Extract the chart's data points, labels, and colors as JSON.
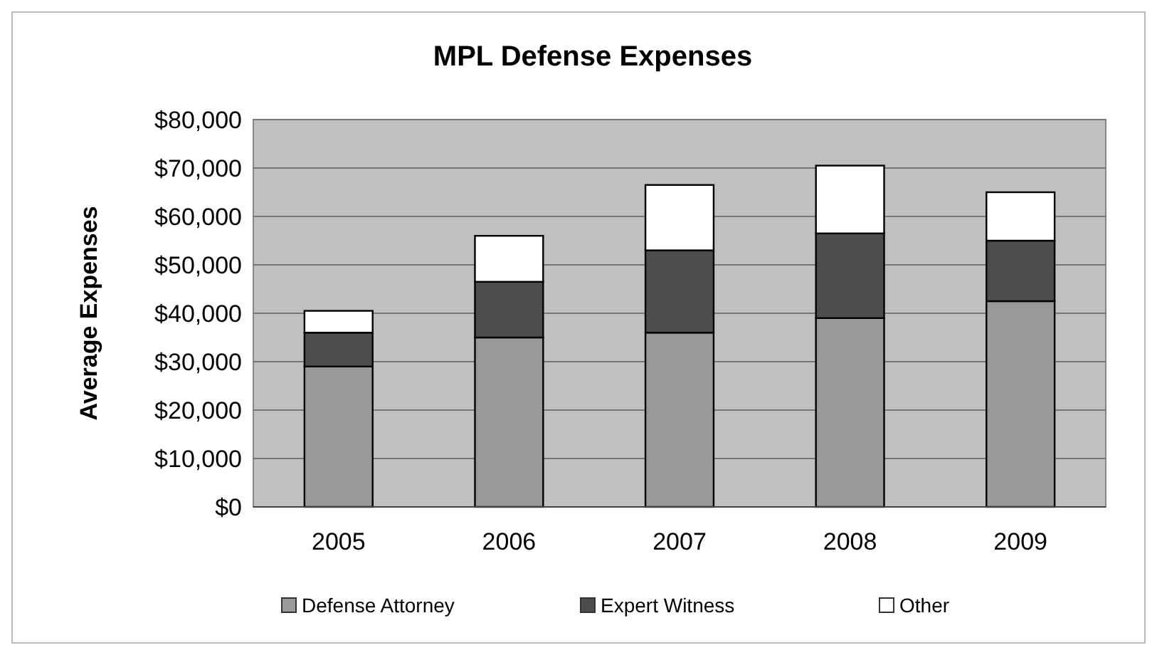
{
  "chart_data": {
    "type": "bar",
    "title": "MPL Defense Expenses",
    "ylabel": "Average Expenses",
    "categories": [
      "2005",
      "2006",
      "2007",
      "2008",
      "2009"
    ],
    "stacked": true,
    "series": [
      {
        "name": "Defense Attorney",
        "color": "#999999",
        "values": [
          29000,
          35000,
          36000,
          39000,
          42500
        ]
      },
      {
        "name": "Expert Witness",
        "color": "#4d4d4d",
        "values": [
          7000,
          11500,
          17000,
          17500,
          12500
        ]
      },
      {
        "name": "Other",
        "color": "#ffffff",
        "values": [
          4500,
          9500,
          13500,
          14000,
          10000
        ]
      }
    ],
    "ylim": [
      0,
      80000
    ],
    "yticks": [
      {
        "value": 0,
        "label": "$0"
      },
      {
        "value": 10000,
        "label": "$10,000"
      },
      {
        "value": 20000,
        "label": "$20,000"
      },
      {
        "value": 30000,
        "label": "$30,000"
      },
      {
        "value": 40000,
        "label": "$40,000"
      },
      {
        "value": 50000,
        "label": "$50,000"
      },
      {
        "value": 60000,
        "label": "$60,000"
      },
      {
        "value": 70000,
        "label": "$70,000"
      },
      {
        "value": 80000,
        "label": "$80,000"
      }
    ],
    "grid": "y",
    "legend": "bottom"
  }
}
